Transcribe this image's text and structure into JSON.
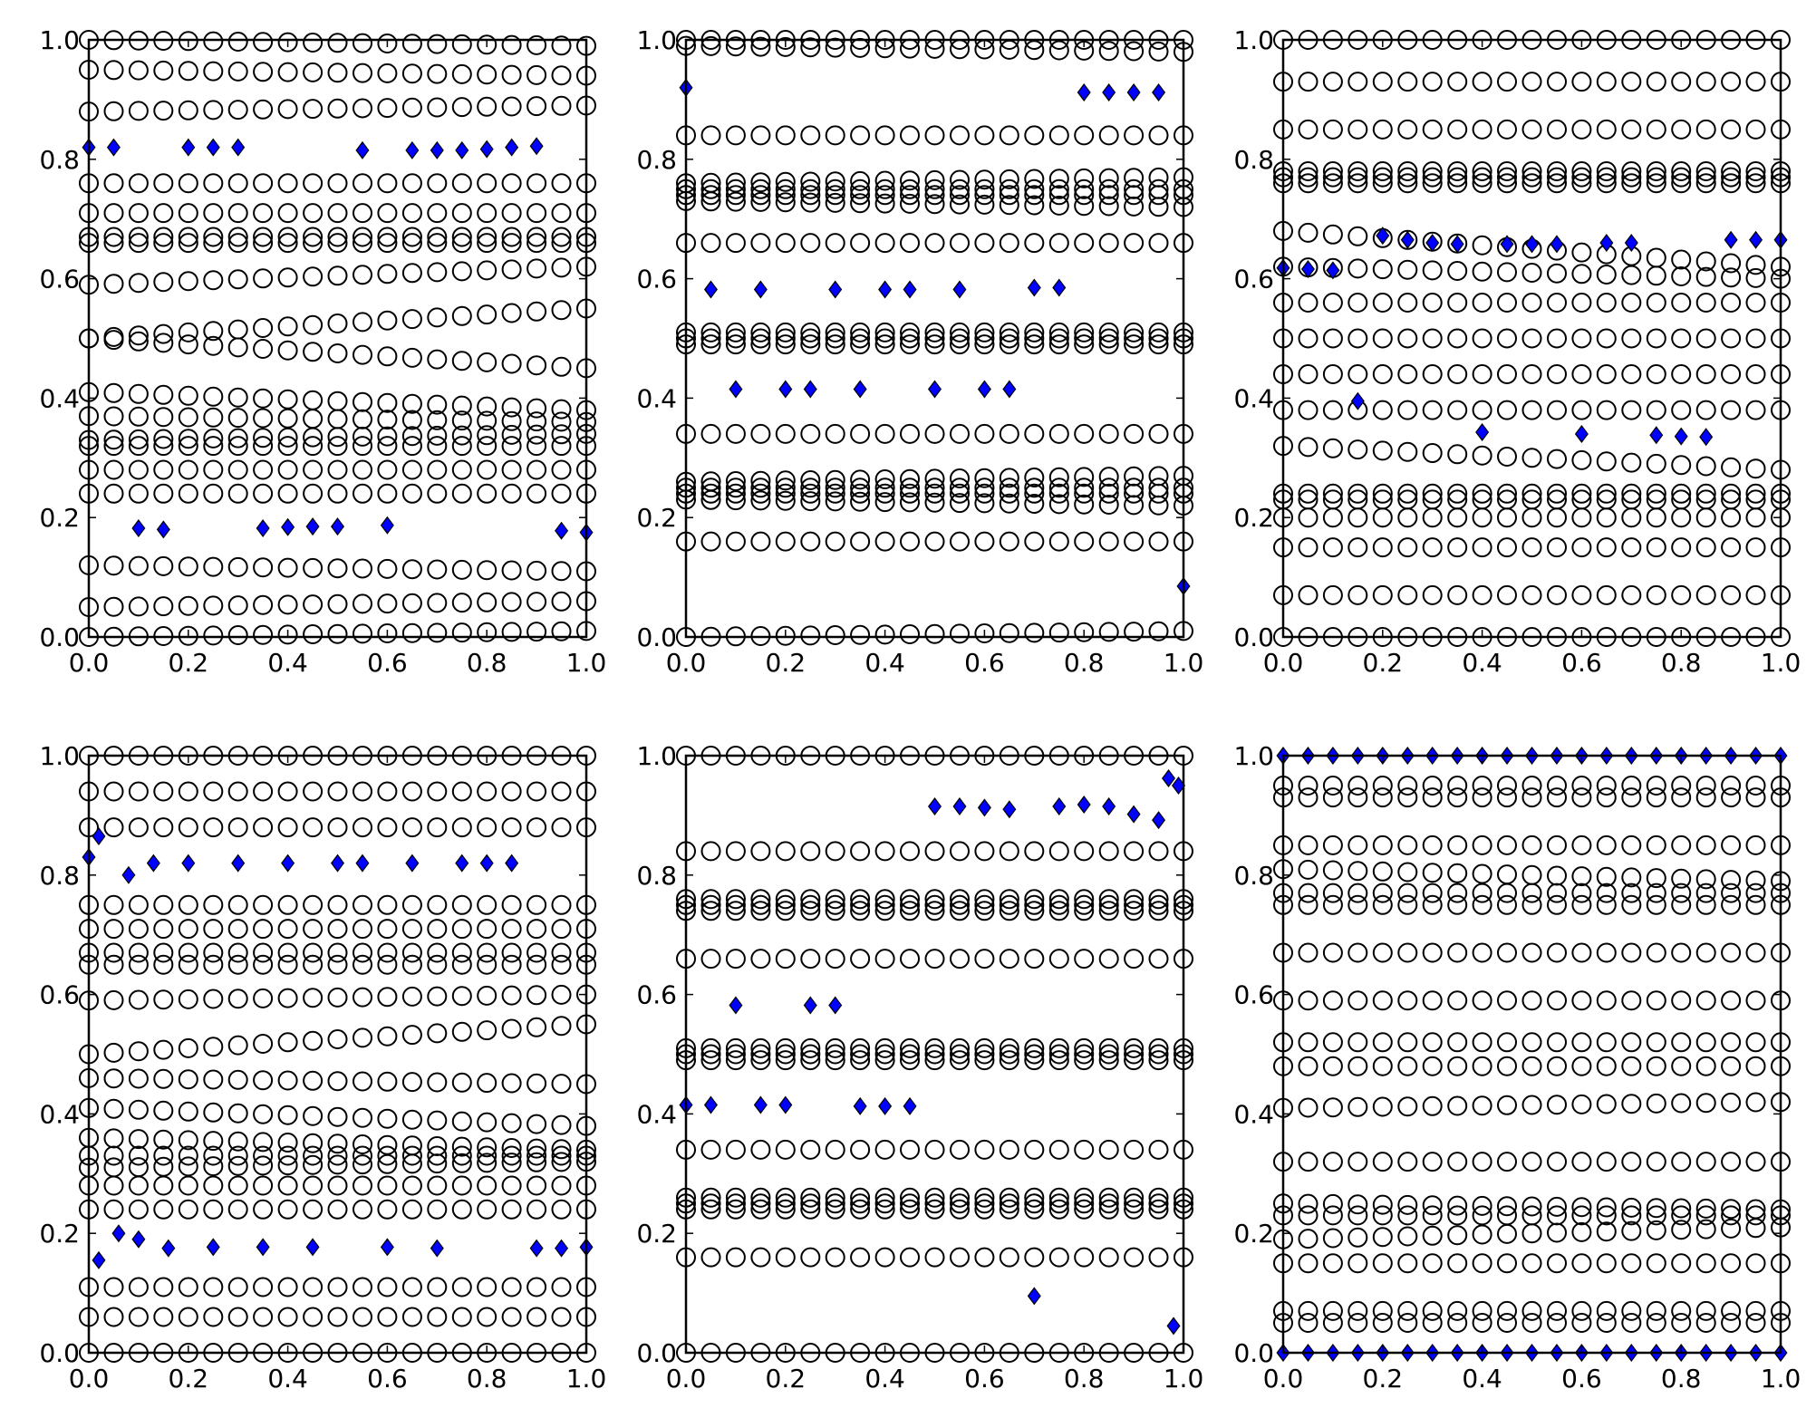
{
  "figure": {
    "rows": 2,
    "cols": 3
  },
  "colors": {
    "marker_fill": "#0000ff",
    "marker_edge": "#000000",
    "circle_edge": "#000000",
    "axes": "#000000",
    "background": "#ffffff"
  },
  "chart_data": [
    {
      "type": "scatter",
      "title": "",
      "xlabel": "",
      "ylabel": "",
      "xlim": [
        0,
        1
      ],
      "ylim": [
        0,
        1
      ],
      "xticks": [
        "0.0",
        "0.2",
        "0.4",
        "0.6",
        "0.8",
        "1.0"
      ],
      "yticks": [
        "0.0",
        "0.2",
        "0.4",
        "0.6",
        "0.8",
        "1.0"
      ],
      "circle_levels": [
        {
          "start": 0.0,
          "end": 0.01
        },
        {
          "start": 0.05,
          "end": 0.06
        },
        {
          "start": 0.12,
          "end": 0.11
        },
        {
          "start": 0.24,
          "end": 0.24
        },
        {
          "start": 0.28,
          "end": 0.28
        },
        {
          "start": 0.32,
          "end": 0.32
        },
        {
          "start": 0.33,
          "end": 0.34
        },
        {
          "start": 0.37,
          "end": 0.36
        },
        {
          "start": 0.41,
          "end": 0.38
        },
        {
          "start": 0.5,
          "end": 0.45
        },
        {
          "start": 0.5,
          "end": 0.55
        },
        {
          "start": 0.59,
          "end": 0.62
        },
        {
          "start": 0.66,
          "end": 0.66
        },
        {
          "start": 0.67,
          "end": 0.67
        },
        {
          "start": 0.71,
          "end": 0.71
        },
        {
          "start": 0.76,
          "end": 0.76
        },
        {
          "start": 0.88,
          "end": 0.89
        },
        {
          "start": 0.95,
          "end": 0.94
        },
        {
          "start": 1.0,
          "end": 0.99
        }
      ],
      "diamonds": [
        [
          0.0,
          0.82
        ],
        [
          0.05,
          0.82
        ],
        [
          0.2,
          0.82
        ],
        [
          0.25,
          0.82
        ],
        [
          0.3,
          0.82
        ],
        [
          0.55,
          0.815
        ],
        [
          0.65,
          0.815
        ],
        [
          0.7,
          0.815
        ],
        [
          0.75,
          0.815
        ],
        [
          0.8,
          0.817
        ],
        [
          0.85,
          0.82
        ],
        [
          0.9,
          0.822
        ],
        [
          0.1,
          0.182
        ],
        [
          0.15,
          0.18
        ],
        [
          0.35,
          0.182
        ],
        [
          0.4,
          0.184
        ],
        [
          0.45,
          0.185
        ],
        [
          0.5,
          0.185
        ],
        [
          0.6,
          0.187
        ],
        [
          0.95,
          0.178
        ],
        [
          1.0,
          0.175
        ]
      ]
    },
    {
      "type": "scatter",
      "title": "",
      "xlabel": "",
      "ylabel": "",
      "xlim": [
        0,
        1
      ],
      "ylim": [
        0,
        1
      ],
      "xticks": [
        "0.0",
        "0.2",
        "0.4",
        "0.6",
        "0.8",
        "1.0"
      ],
      "yticks": [
        "0.0",
        "0.2",
        "0.4",
        "0.6",
        "0.8",
        "1.0"
      ],
      "circle_levels": [
        {
          "start": 0.0,
          "end": 0.01
        },
        {
          "start": 0.16,
          "end": 0.16
        },
        {
          "start": 0.23,
          "end": 0.22
        },
        {
          "start": 0.24,
          "end": 0.24
        },
        {
          "start": 0.25,
          "end": 0.25
        },
        {
          "start": 0.26,
          "end": 0.27
        },
        {
          "start": 0.34,
          "end": 0.34
        },
        {
          "start": 0.49,
          "end": 0.49
        },
        {
          "start": 0.5,
          "end": 0.5
        },
        {
          "start": 0.51,
          "end": 0.51
        },
        {
          "start": 0.66,
          "end": 0.66
        },
        {
          "start": 0.73,
          "end": 0.72
        },
        {
          "start": 0.74,
          "end": 0.74
        },
        {
          "start": 0.75,
          "end": 0.75
        },
        {
          "start": 0.76,
          "end": 0.77
        },
        {
          "start": 0.84,
          "end": 0.84
        },
        {
          "start": 0.99,
          "end": 0.98
        },
        {
          "start": 1.0,
          "end": 1.0
        }
      ],
      "diamonds": [
        [
          0.0,
          0.92
        ],
        [
          0.8,
          0.912
        ],
        [
          0.85,
          0.912
        ],
        [
          0.9,
          0.912
        ],
        [
          0.95,
          0.912
        ],
        [
          0.05,
          0.582
        ],
        [
          0.15,
          0.582
        ],
        [
          0.3,
          0.582
        ],
        [
          0.4,
          0.582
        ],
        [
          0.45,
          0.582
        ],
        [
          0.55,
          0.582
        ],
        [
          0.7,
          0.585
        ],
        [
          0.75,
          0.585
        ],
        [
          0.1,
          0.415
        ],
        [
          0.2,
          0.415
        ],
        [
          0.25,
          0.415
        ],
        [
          0.35,
          0.415
        ],
        [
          0.5,
          0.415
        ],
        [
          0.6,
          0.415
        ],
        [
          0.65,
          0.415
        ],
        [
          1.0,
          0.085
        ]
      ]
    },
    {
      "type": "scatter",
      "title": "",
      "xlabel": "",
      "ylabel": "",
      "xlim": [
        0,
        1
      ],
      "ylim": [
        0,
        1
      ],
      "xticks": [
        "0.0",
        "0.2",
        "0.4",
        "0.6",
        "0.8",
        "1.0"
      ],
      "yticks": [
        "0.0",
        "0.2",
        "0.4",
        "0.6",
        "0.8",
        "1.0"
      ],
      "circle_levels": [
        {
          "start": 0.0,
          "end": 0.0
        },
        {
          "start": 0.07,
          "end": 0.07
        },
        {
          "start": 0.15,
          "end": 0.15
        },
        {
          "start": 0.2,
          "end": 0.2
        },
        {
          "start": 0.23,
          "end": 0.23
        },
        {
          "start": 0.24,
          "end": 0.24
        },
        {
          "start": 0.32,
          "end": 0.28
        },
        {
          "start": 0.38,
          "end": 0.38
        },
        {
          "start": 0.44,
          "end": 0.44
        },
        {
          "start": 0.5,
          "end": 0.5
        },
        {
          "start": 0.56,
          "end": 0.56
        },
        {
          "start": 0.62,
          "end": 0.6
        },
        {
          "start": 0.68,
          "end": 0.62
        },
        {
          "start": 0.76,
          "end": 0.76
        },
        {
          "start": 0.77,
          "end": 0.77
        },
        {
          "start": 0.78,
          "end": 0.78
        },
        {
          "start": 0.85,
          "end": 0.85
        },
        {
          "start": 0.93,
          "end": 0.93
        },
        {
          "start": 1.0,
          "end": 1.0
        }
      ],
      "diamonds": [
        [
          0.0,
          0.618
        ],
        [
          0.05,
          0.616
        ],
        [
          0.1,
          0.614
        ],
        [
          0.2,
          0.672
        ],
        [
          0.25,
          0.665
        ],
        [
          0.3,
          0.66
        ],
        [
          0.35,
          0.658
        ],
        [
          0.45,
          0.658
        ],
        [
          0.5,
          0.658
        ],
        [
          0.55,
          0.658
        ],
        [
          0.65,
          0.66
        ],
        [
          0.7,
          0.66
        ],
        [
          0.9,
          0.665
        ],
        [
          0.95,
          0.665
        ],
        [
          1.0,
          0.665
        ],
        [
          0.15,
          0.395
        ],
        [
          0.4,
          0.343
        ],
        [
          0.6,
          0.34
        ],
        [
          0.75,
          0.338
        ],
        [
          0.8,
          0.336
        ],
        [
          0.85,
          0.335
        ]
      ]
    },
    {
      "type": "scatter",
      "title": "",
      "xlabel": "",
      "ylabel": "",
      "xlim": [
        0,
        1
      ],
      "ylim": [
        0,
        1
      ],
      "xticks": [
        "0.0",
        "0.2",
        "0.4",
        "0.6",
        "0.8",
        "1.0"
      ],
      "yticks": [
        "0.0",
        "0.2",
        "0.4",
        "0.6",
        "0.8",
        "1.0"
      ],
      "circle_levels": [
        {
          "start": 0.0,
          "end": 0.0
        },
        {
          "start": 0.06,
          "end": 0.06
        },
        {
          "start": 0.11,
          "end": 0.11
        },
        {
          "start": 0.24,
          "end": 0.24
        },
        {
          "start": 0.28,
          "end": 0.28
        },
        {
          "start": 0.31,
          "end": 0.32
        },
        {
          "start": 0.33,
          "end": 0.33
        },
        {
          "start": 0.36,
          "end": 0.34
        },
        {
          "start": 0.41,
          "end": 0.38
        },
        {
          "start": 0.46,
          "end": 0.45
        },
        {
          "start": 0.5,
          "end": 0.55
        },
        {
          "start": 0.59,
          "end": 0.6
        },
        {
          "start": 0.65,
          "end": 0.65
        },
        {
          "start": 0.67,
          "end": 0.67
        },
        {
          "start": 0.71,
          "end": 0.71
        },
        {
          "start": 0.75,
          "end": 0.75
        },
        {
          "start": 0.88,
          "end": 0.88
        },
        {
          "start": 0.94,
          "end": 0.94
        },
        {
          "start": 1.0,
          "end": 1.0
        }
      ],
      "diamonds": [
        [
          0.0,
          0.83
        ],
        [
          0.02,
          0.865
        ],
        [
          0.08,
          0.8
        ],
        [
          0.13,
          0.82
        ],
        [
          0.2,
          0.82
        ],
        [
          0.3,
          0.82
        ],
        [
          0.4,
          0.82
        ],
        [
          0.5,
          0.82
        ],
        [
          0.55,
          0.82
        ],
        [
          0.65,
          0.82
        ],
        [
          0.75,
          0.82
        ],
        [
          0.8,
          0.82
        ],
        [
          0.85,
          0.82
        ],
        [
          0.02,
          0.155
        ],
        [
          0.06,
          0.2
        ],
        [
          0.1,
          0.19
        ],
        [
          0.16,
          0.175
        ],
        [
          0.25,
          0.177
        ],
        [
          0.35,
          0.177
        ],
        [
          0.45,
          0.177
        ],
        [
          0.6,
          0.177
        ],
        [
          0.7,
          0.175
        ],
        [
          0.9,
          0.175
        ],
        [
          0.95,
          0.175
        ],
        [
          1.0,
          0.177
        ]
      ]
    },
    {
      "type": "scatter",
      "title": "",
      "xlabel": "",
      "ylabel": "",
      "xlim": [
        0,
        1
      ],
      "ylim": [
        0,
        1
      ],
      "xticks": [
        "0.0",
        "0.2",
        "0.4",
        "0.6",
        "0.8",
        "1.0"
      ],
      "yticks": [
        "0.0",
        "0.2",
        "0.4",
        "0.6",
        "0.8",
        "1.0"
      ],
      "circle_levels": [
        {
          "start": 0.0,
          "end": 0.0
        },
        {
          "start": 0.16,
          "end": 0.16
        },
        {
          "start": 0.24,
          "end": 0.24
        },
        {
          "start": 0.25,
          "end": 0.25
        },
        {
          "start": 0.26,
          "end": 0.26
        },
        {
          "start": 0.34,
          "end": 0.34
        },
        {
          "start": 0.49,
          "end": 0.49
        },
        {
          "start": 0.5,
          "end": 0.5
        },
        {
          "start": 0.51,
          "end": 0.51
        },
        {
          "start": 0.66,
          "end": 0.66
        },
        {
          "start": 0.74,
          "end": 0.74
        },
        {
          "start": 0.75,
          "end": 0.75
        },
        {
          "start": 0.76,
          "end": 0.76
        },
        {
          "start": 0.84,
          "end": 0.84
        },
        {
          "start": 1.0,
          "end": 1.0
        }
      ],
      "diamonds": [
        [
          0.5,
          0.915
        ],
        [
          0.55,
          0.915
        ],
        [
          0.6,
          0.913
        ],
        [
          0.65,
          0.91
        ],
        [
          0.75,
          0.915
        ],
        [
          0.8,
          0.918
        ],
        [
          0.85,
          0.915
        ],
        [
          0.9,
          0.902
        ],
        [
          0.95,
          0.892
        ],
        [
          0.97,
          0.962
        ],
        [
          0.99,
          0.95
        ],
        [
          0.1,
          0.582
        ],
        [
          0.25,
          0.582
        ],
        [
          0.3,
          0.582
        ],
        [
          0.0,
          0.415
        ],
        [
          0.05,
          0.415
        ],
        [
          0.15,
          0.415
        ],
        [
          0.2,
          0.415
        ],
        [
          0.35,
          0.413
        ],
        [
          0.4,
          0.413
        ],
        [
          0.45,
          0.413
        ],
        [
          0.7,
          0.095
        ],
        [
          0.98,
          0.045
        ]
      ]
    },
    {
      "type": "scatter",
      "title": "",
      "xlabel": "",
      "ylabel": "",
      "xlim": [
        0,
        1
      ],
      "ylim": [
        0,
        1
      ],
      "xticks": [
        "0.0",
        "0.2",
        "0.4",
        "0.6",
        "0.8",
        "1.0"
      ],
      "yticks": [
        "0.0",
        "0.2",
        "0.4",
        "0.6",
        "0.8",
        "1.0"
      ],
      "circle_levels": [
        {
          "start": 0.05,
          "end": 0.05
        },
        {
          "start": 0.07,
          "end": 0.07
        },
        {
          "start": 0.15,
          "end": 0.15
        },
        {
          "start": 0.19,
          "end": 0.21
        },
        {
          "start": 0.23,
          "end": 0.23
        },
        {
          "start": 0.25,
          "end": 0.24
        },
        {
          "start": 0.32,
          "end": 0.32
        },
        {
          "start": 0.41,
          "end": 0.42
        },
        {
          "start": 0.48,
          "end": 0.48
        },
        {
          "start": 0.52,
          "end": 0.52
        },
        {
          "start": 0.59,
          "end": 0.59
        },
        {
          "start": 0.67,
          "end": 0.67
        },
        {
          "start": 0.75,
          "end": 0.75
        },
        {
          "start": 0.77,
          "end": 0.77
        },
        {
          "start": 0.81,
          "end": 0.79
        },
        {
          "start": 0.85,
          "end": 0.85
        },
        {
          "start": 0.93,
          "end": 0.93
        },
        {
          "start": 0.95,
          "end": 0.95
        }
      ],
      "diamonds": [
        [
          0.0,
          1.0
        ],
        [
          0.05,
          1.0
        ],
        [
          0.1,
          1.0
        ],
        [
          0.15,
          1.0
        ],
        [
          0.2,
          1.0
        ],
        [
          0.25,
          1.0
        ],
        [
          0.3,
          1.0
        ],
        [
          0.35,
          1.0
        ],
        [
          0.4,
          1.0
        ],
        [
          0.45,
          1.0
        ],
        [
          0.5,
          1.0
        ],
        [
          0.55,
          1.0
        ],
        [
          0.6,
          1.0
        ],
        [
          0.65,
          1.0
        ],
        [
          0.7,
          1.0
        ],
        [
          0.75,
          1.0
        ],
        [
          0.8,
          1.0
        ],
        [
          0.85,
          1.0
        ],
        [
          0.9,
          1.0
        ],
        [
          0.95,
          1.0
        ],
        [
          1.0,
          1.0
        ],
        [
          0.0,
          0.0
        ],
        [
          0.05,
          0.0
        ],
        [
          0.1,
          0.0
        ],
        [
          0.15,
          0.0
        ],
        [
          0.2,
          0.0
        ],
        [
          0.25,
          0.0
        ],
        [
          0.3,
          0.0
        ],
        [
          0.35,
          0.0
        ],
        [
          0.4,
          0.0
        ],
        [
          0.45,
          0.0
        ],
        [
          0.5,
          0.0
        ],
        [
          0.55,
          0.0
        ],
        [
          0.6,
          0.0
        ],
        [
          0.65,
          0.0
        ],
        [
          0.7,
          0.0
        ],
        [
          0.75,
          0.0
        ],
        [
          0.8,
          0.0
        ],
        [
          0.85,
          0.0
        ],
        [
          0.9,
          0.0
        ],
        [
          0.95,
          0.0
        ],
        [
          1.0,
          0.0
        ]
      ]
    }
  ]
}
